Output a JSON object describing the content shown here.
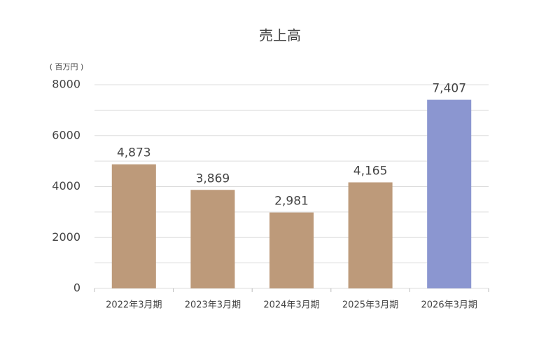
{
  "chart_data": {
    "type": "bar",
    "title": "売上高",
    "y_unit_label": "( 百万円 )",
    "categories": [
      "2022年3月期",
      "2023年3月期",
      "2024年3月期",
      "2025年3月期",
      "2026年3月期"
    ],
    "values": [
      4873,
      3869,
      2981,
      4165,
      7407
    ],
    "value_labels": [
      "4,873",
      "3,869",
      "2,981",
      "4,165",
      "7,407"
    ],
    "colors": [
      "#bd9a7a",
      "#bd9a7a",
      "#bd9a7a",
      "#bd9a7a",
      "#8b96d0"
    ],
    "ylim": [
      0,
      8000
    ],
    "yticks": [
      0,
      2000,
      4000,
      6000,
      8000
    ],
    "minor_yticks": [
      1000,
      3000,
      5000,
      7000
    ],
    "grid": true
  }
}
